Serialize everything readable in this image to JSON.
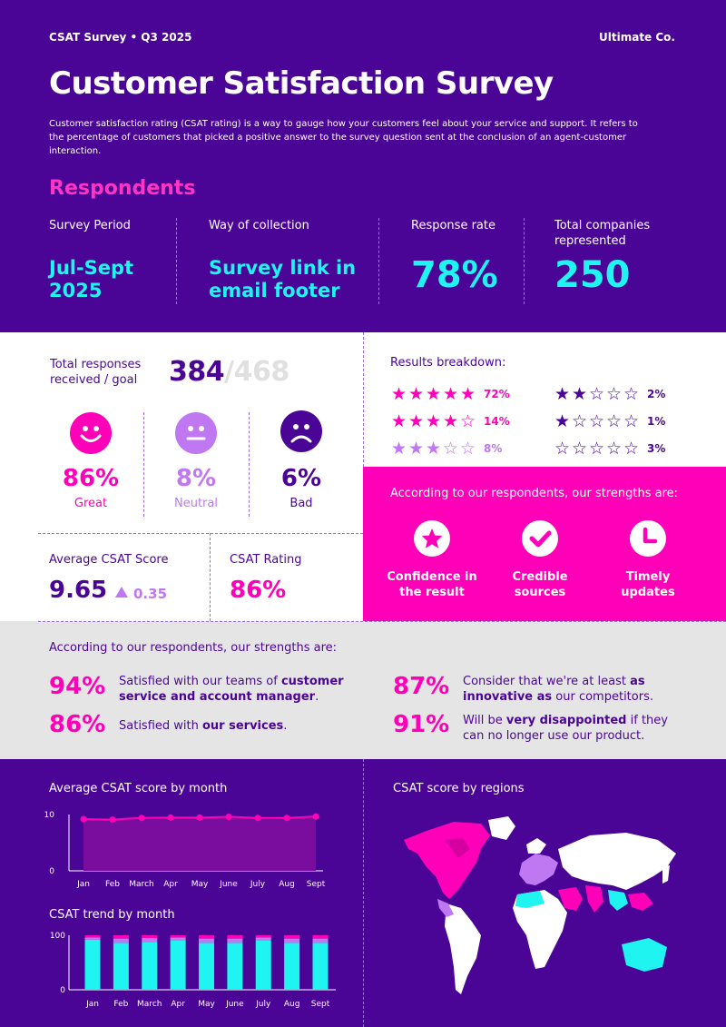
{
  "header": {
    "survey_tag": "CSAT Survey • Q3 2025",
    "company": "Ultimate Co.",
    "title": "Customer Satisfaction Survey",
    "intro": "Customer satisfaction rating (CSAT rating) is a way to gauge how your customers feel about your service and support. It refers to the percentage of customers that picked a positive answer to the survey question sent at the conclusion of an agent-customer interaction."
  },
  "respondents": {
    "heading": "Respondents",
    "stats": [
      {
        "label": "Survey Period",
        "value": "Jul-Sept 2025"
      },
      {
        "label": "Way of collection",
        "value": "Survey link in email footer"
      },
      {
        "label": "Response rate",
        "value": "78%"
      },
      {
        "label": "Total companies represented",
        "value": "250"
      }
    ]
  },
  "responses": {
    "label": "Total responses received / goal",
    "received": "384",
    "goal": "/468"
  },
  "sentiment": [
    {
      "icon": "happy-face-icon",
      "pct": "86%",
      "label": "Great",
      "color": "#ff00b8"
    },
    {
      "icon": "neutral-face-icon",
      "pct": "8%",
      "label": "Neutral",
      "color": "#c077f2"
    },
    {
      "icon": "sad-face-icon",
      "pct": "6%",
      "label": "Bad",
      "color": "#4a0596"
    }
  ],
  "scores": {
    "avg_label": "Average CSAT Score",
    "avg_value": "9.65",
    "avg_change": "0.35",
    "rating_label": "CSAT Rating",
    "rating_value": "86%"
  },
  "breakdown": {
    "title": "Results breakdown:",
    "rows": [
      {
        "stars": 5,
        "pct": "72%",
        "color": "#ff00b8"
      },
      {
        "stars": 4,
        "pct": "14%",
        "color": "#ff00b8"
      },
      {
        "stars": 3,
        "pct": "8%",
        "color": "#c077f2"
      },
      {
        "stars": 2,
        "pct": "2%",
        "color": "#4a0596"
      },
      {
        "stars": 1,
        "pct": "1%",
        "color": "#4a0596"
      },
      {
        "stars": 0,
        "pct": "3%",
        "color": "#4a0596"
      }
    ]
  },
  "strengths_box": {
    "title": "According to our respondents, our strengths are:",
    "items": [
      {
        "icon": "star-icon",
        "label": "Confidence in the result"
      },
      {
        "icon": "check-icon",
        "label": "Credible sources"
      },
      {
        "icon": "clock-icon",
        "label": "Timely updates"
      }
    ]
  },
  "strengths_grey": {
    "title": "According to our respondents, our strengths are:",
    "items": [
      {
        "pct": "94%",
        "pre": "Satisfied with our teams of ",
        "bold": "customer service and account manager",
        "post": "."
      },
      {
        "pct": "86%",
        "pre": "Satisfied with ",
        "bold": "our services",
        "post": "."
      },
      {
        "pct": "87%",
        "pre": "Consider that we're at least ",
        "bold": "as innovative as",
        "post": " our competitors."
      },
      {
        "pct": "91%",
        "pre": "Will be ",
        "bold": "very disappointed",
        "post": " if they can no longer use our product."
      }
    ]
  },
  "regions": {
    "title": "CSAT score by regions"
  },
  "chart_data": [
    {
      "type": "area",
      "title": "Average CSAT score by month",
      "categories": [
        "Jan",
        "Feb",
        "March",
        "Apr",
        "May",
        "June",
        "July",
        "Aug",
        "Sept"
      ],
      "values": [
        9.2,
        9.1,
        9.4,
        9.45,
        9.45,
        9.6,
        9.4,
        9.4,
        9.65
      ],
      "ylim": [
        0,
        10
      ],
      "yticks": [
        "0",
        "10"
      ],
      "line_color": "#ff00b8",
      "fill_color": "#7a0d9e"
    },
    {
      "type": "bar",
      "title": "CSAT trend by month",
      "categories": [
        "Jan",
        "Feb",
        "March",
        "Apr",
        "May",
        "June",
        "July",
        "Aug",
        "Sept"
      ],
      "series": [
        {
          "values": [
            92,
            86,
            88,
            90,
            86,
            86,
            90,
            86,
            86
          ],
          "color": "#1ff4f0"
        },
        {
          "values": [
            4,
            8,
            7,
            6,
            8,
            8,
            6,
            8,
            8
          ],
          "color": "#c077f2"
        },
        {
          "values": [
            4,
            6,
            5,
            4,
            6,
            6,
            4,
            6,
            6
          ],
          "color": "#ff00b8"
        }
      ],
      "ylim": [
        0,
        100
      ],
      "yticks": [
        "0",
        "100"
      ]
    }
  ]
}
